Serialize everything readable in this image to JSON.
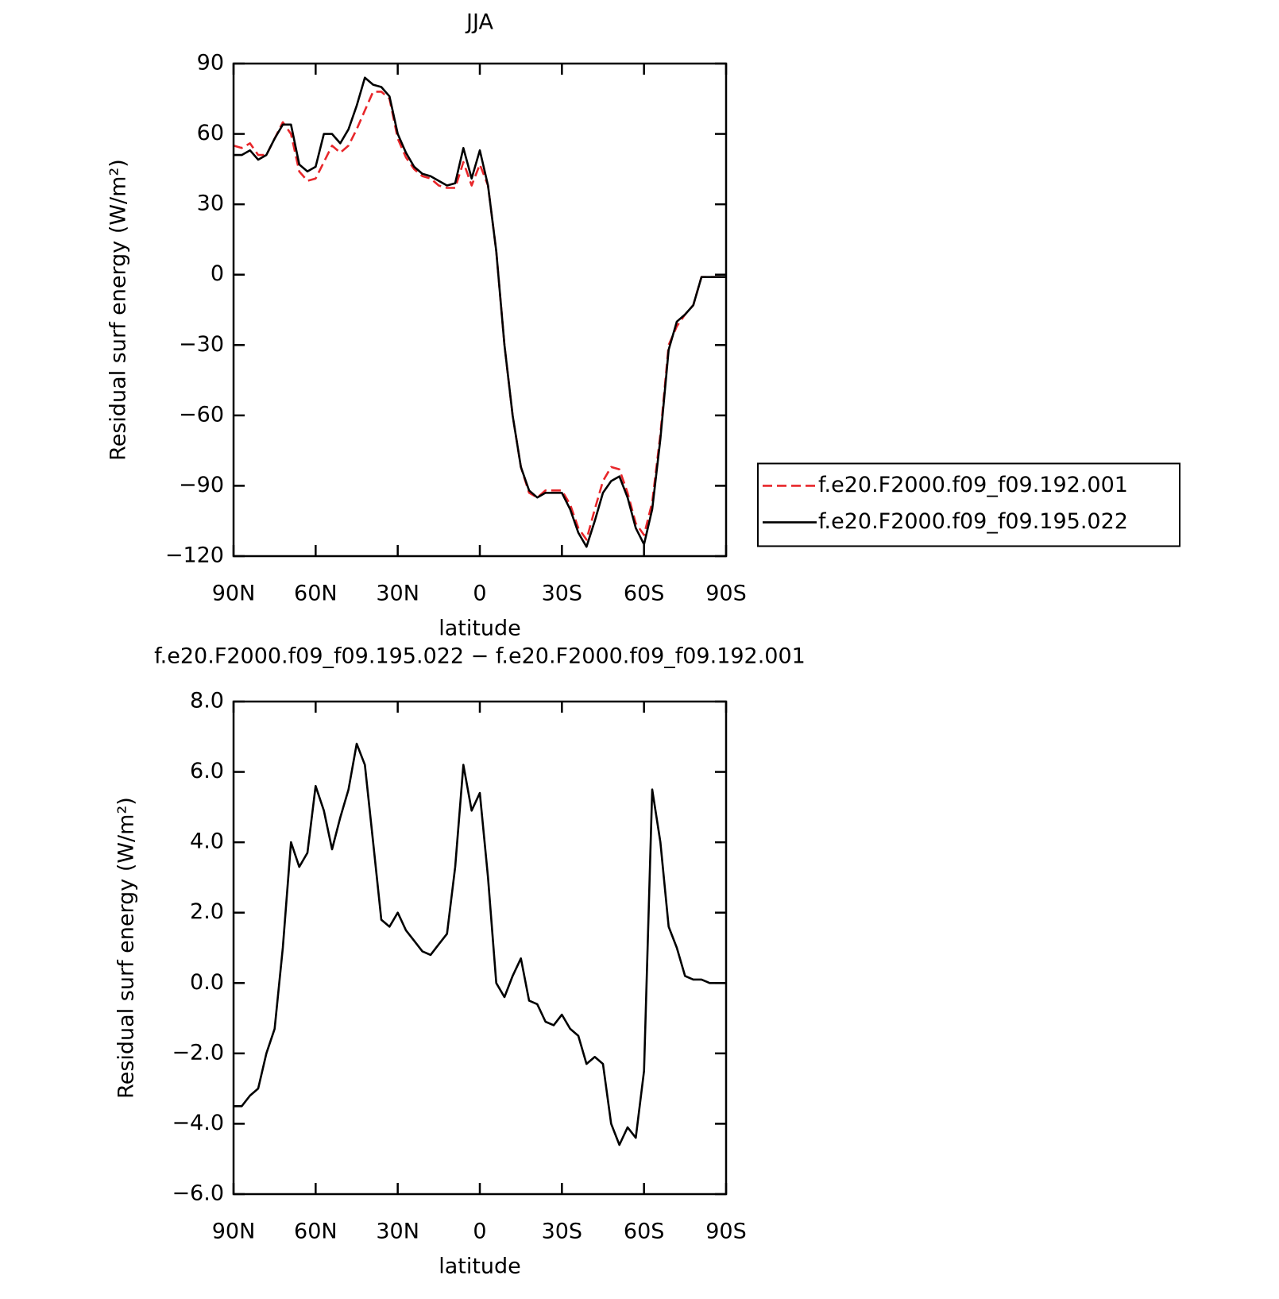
{
  "chart_data": [
    {
      "type": "line",
      "title": "JJA",
      "xlabel": "latitude",
      "ylabel": "Residual surf energy (W/m²)",
      "x": [
        90,
        87,
        84,
        81,
        78,
        75,
        72,
        69,
        66,
        63,
        60,
        57,
        54,
        51,
        48,
        45,
        42,
        39,
        36,
        33,
        30,
        27,
        24,
        21,
        18,
        15,
        12,
        9,
        6,
        3,
        0,
        -3,
        -6,
        -9,
        -12,
        -15,
        -18,
        -21,
        -24,
        -27,
        -30,
        -33,
        -36,
        -39,
        -42,
        -45,
        -48,
        -51,
        -54,
        -57,
        -60,
        -63,
        -66,
        -69,
        -72,
        -75,
        -78,
        -81,
        -84,
        -87,
        -90
      ],
      "xlim": [
        90,
        -90
      ],
      "xticks": [
        {
          "value": 90,
          "label": "90N"
        },
        {
          "value": 60,
          "label": "60N"
        },
        {
          "value": 30,
          "label": "30N"
        },
        0,
        {
          "value": -30,
          "label": "30S"
        },
        {
          "value": -60,
          "label": "60S"
        },
        {
          "value": -90,
          "label": "90S"
        }
      ],
      "ylim": [
        -120,
        90
      ],
      "yticks": [
        {
          "value": -120,
          "label": "−120"
        },
        {
          "value": -90,
          "label": "−90"
        },
        {
          "value": -60,
          "label": "−60"
        },
        {
          "value": -30,
          "label": "−30"
        },
        0,
        30,
        60,
        90
      ],
      "legend": "right",
      "series": [
        {
          "name": "f.e20.F2000.f09_f09.192.001",
          "color": "#e8262a",
          "linestyle": "dashed",
          "values": [
            55,
            54,
            56,
            51,
            51,
            58,
            65,
            60,
            44,
            40,
            41,
            48,
            55,
            52,
            55,
            62,
            70,
            78,
            78,
            75,
            58,
            50,
            45,
            42,
            41,
            38,
            37,
            37,
            48,
            38,
            47,
            38,
            10,
            -30,
            -60,
            -82,
            -93,
            -95,
            -92,
            -92,
            -92,
            -98,
            -108,
            -113,
            -100,
            -88,
            -82,
            -83,
            -93,
            -106,
            -111,
            -97,
            -68,
            -30,
            -22,
            -17,
            -13,
            -1,
            -1,
            -1,
            -1
          ]
        },
        {
          "name": "f.e20.F2000.f09_f09.195.022",
          "color": "#000000",
          "linestyle": "solid",
          "values": [
            51,
            51,
            53,
            49,
            51,
            58,
            64,
            64,
            47,
            44,
            46,
            60,
            60,
            56,
            62,
            72,
            84,
            81,
            80,
            76,
            60,
            52,
            46,
            43,
            42,
            40,
            38,
            39,
            54,
            41,
            53,
            38,
            10,
            -30,
            -60,
            -82,
            -92,
            -95,
            -93,
            -93,
            -93,
            -100,
            -110,
            -116,
            -105,
            -93,
            -88,
            -86,
            -95,
            -108,
            -115,
            -100,
            -70,
            -32,
            -20,
            -17,
            -13,
            -1,
            -1,
            -1,
            -1
          ]
        }
      ]
    },
    {
      "type": "line",
      "title": "f.e20.F2000.f09_f09.195.022 − f.e20.F2000.f09_f09.192.001",
      "xlabel": "latitude",
      "ylabel": "Residual surf energy (W/m²)",
      "x": [
        90,
        87,
        84,
        81,
        78,
        75,
        72,
        69,
        66,
        63,
        60,
        57,
        54,
        51,
        48,
        45,
        42,
        39,
        36,
        33,
        30,
        27,
        24,
        21,
        18,
        15,
        12,
        9,
        6,
        3,
        0,
        -3,
        -6,
        -9,
        -12,
        -15,
        -18,
        -21,
        -24,
        -27,
        -30,
        -33,
        -36,
        -39,
        -42,
        -45,
        -48,
        -51,
        -54,
        -57,
        -60,
        -63,
        -66,
        -69,
        -72,
        -75,
        -78,
        -81,
        -84,
        -87,
        -90
      ],
      "xlim": [
        90,
        -90
      ],
      "xticks": [
        {
          "value": 90,
          "label": "90N"
        },
        {
          "value": 60,
          "label": "60N"
        },
        {
          "value": 30,
          "label": "30N"
        },
        0,
        {
          "value": -30,
          "label": "30S"
        },
        {
          "value": -60,
          "label": "60S"
        },
        {
          "value": -90,
          "label": "90S"
        }
      ],
      "ylim": [
        -6,
        8
      ],
      "yticks": [
        {
          "value": -6,
          "label": "−6.0"
        },
        {
          "value": -4,
          "label": "−4.0"
        },
        {
          "value": -2,
          "label": "−2.0"
        },
        {
          "value": 0,
          "label": "0.0"
        },
        {
          "value": 2,
          "label": "2.0"
        },
        {
          "value": 4,
          "label": "4.0"
        },
        {
          "value": 6,
          "label": "6.0"
        },
        {
          "value": 8,
          "label": "8.0"
        }
      ],
      "color": "#000000",
      "values": [
        -3.5,
        -3.5,
        -3.2,
        -3.0,
        -2.0,
        -1.3,
        1.0,
        4.0,
        3.3,
        3.7,
        5.6,
        4.9,
        3.8,
        4.7,
        5.5,
        6.8,
        6.2,
        4.0,
        1.8,
        1.6,
        2.0,
        1.5,
        1.2,
        0.9,
        0.8,
        1.1,
        1.4,
        3.3,
        6.2,
        4.9,
        5.4,
        3.0,
        0.0,
        -0.4,
        0.2,
        0.7,
        -0.5,
        -0.6,
        -1.1,
        -1.2,
        -0.9,
        -1.3,
        -1.5,
        -2.3,
        -2.1,
        -2.3,
        -4.0,
        -4.6,
        -4.1,
        -4.4,
        -2.5,
        5.5,
        4.0,
        1.6,
        1.0,
        0.2,
        0.1,
        0.1,
        0.0,
        0.0,
        0.0
      ]
    }
  ]
}
